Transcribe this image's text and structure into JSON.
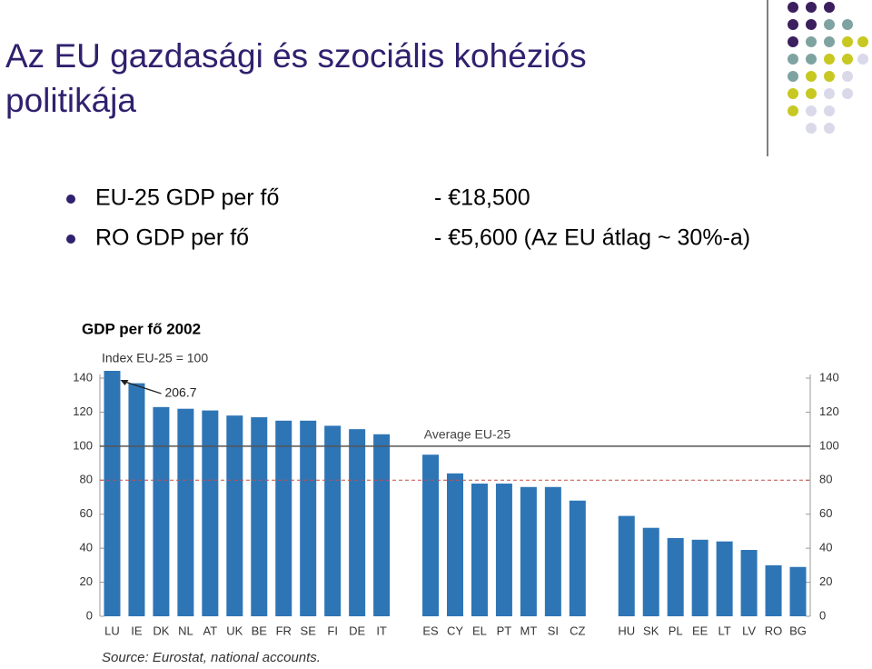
{
  "slide": {
    "title_line1": "Az EU gazdasági és szociális kohéziós",
    "title_line2": "politikája",
    "bullets": [
      {
        "label": "EU-25 GDP per fő",
        "value": "- €18,500"
      },
      {
        "label": "RO GDP per fő",
        "value": "- €5,600 (Az EU átlag ~ 30%-a)"
      }
    ]
  },
  "chart_data": {
    "type": "bar",
    "title": "GDP per fő 2002",
    "subtitle": "Index EU-25 = 100",
    "source": "Source: Eurostat, national accounts.",
    "categories": [
      "LU",
      "IE",
      "DK",
      "NL",
      "AT",
      "UK",
      "BE",
      "FR",
      "SE",
      "FI",
      "DE",
      "IT",
      null,
      "ES",
      "CY",
      "EL",
      "PT",
      "MT",
      "SI",
      "CZ",
      null,
      "HU",
      "SK",
      "PL",
      "EE",
      "LT",
      "LV",
      "RO",
      "BG"
    ],
    "values": [
      206.7,
      137,
      123,
      122,
      121,
      118,
      117,
      115,
      115,
      112,
      110,
      107,
      null,
      95,
      84,
      78,
      78,
      76,
      76,
      68,
      null,
      59,
      52,
      46,
      45,
      44,
      39,
      30,
      29
    ],
    "value_labels": [
      "206.7",
      null,
      null,
      null,
      null,
      null,
      null,
      null,
      null,
      null,
      null,
      null,
      null,
      null,
      null,
      null,
      null,
      null,
      null,
      null,
      null,
      null,
      null,
      null,
      null,
      null,
      null,
      null,
      null
    ],
    "color": "#2e75b6",
    "ylim": [
      0,
      140
    ],
    "yticks": [
      0,
      20,
      40,
      60,
      80,
      100,
      120,
      140
    ],
    "y2lim": [
      0,
      140
    ],
    "y2ticks": [
      0,
      20,
      40,
      60,
      80,
      100,
      120,
      140
    ],
    "reference_lines": [
      {
        "value": 100,
        "label": "Average EU-25",
        "color": "#555555",
        "style": "solid"
      },
      {
        "value": 80,
        "color": "#c0504d",
        "style": "dashed"
      }
    ]
  }
}
